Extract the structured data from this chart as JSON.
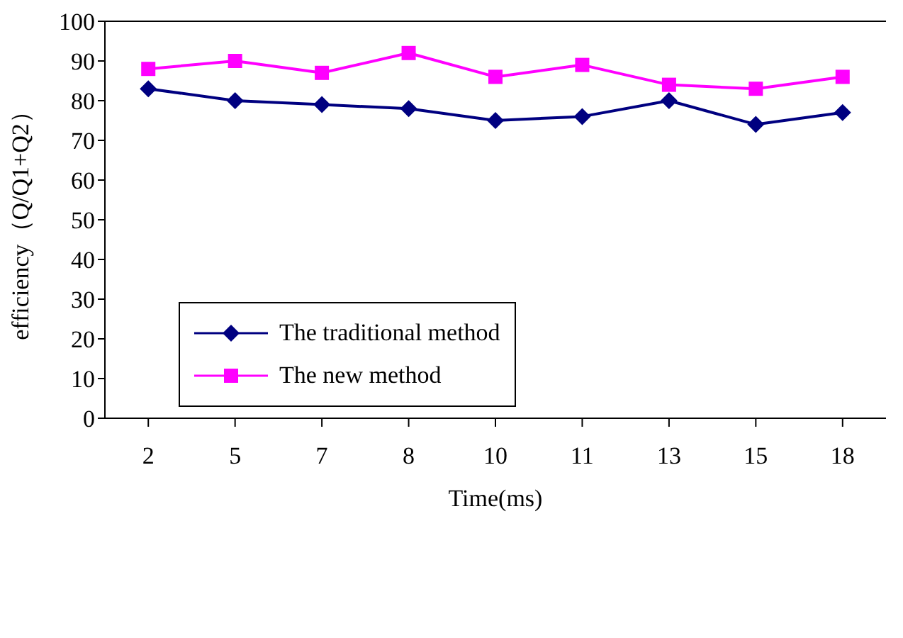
{
  "chart_data": {
    "type": "line",
    "xlabel": "Time(ms)",
    "ylabel": "efficiency（Q/Q1+Q2）",
    "categories": [
      "2",
      "5",
      "7",
      "8",
      "10",
      "11",
      "13",
      "15",
      "18"
    ],
    "series": [
      {
        "name": "The traditional method",
        "color": "#000080",
        "marker": "diamond",
        "values": [
          83,
          80,
          79,
          78,
          75,
          76,
          80,
          74,
          77
        ]
      },
      {
        "name": "The new method",
        "color": "#ff00ff",
        "marker": "square",
        "values": [
          88,
          90,
          87,
          92,
          86,
          89,
          84,
          83,
          86
        ]
      }
    ],
    "ylim": [
      0,
      100
    ],
    "yticks": [
      0,
      10,
      20,
      30,
      40,
      50,
      60,
      70,
      80,
      90,
      100
    ],
    "grid": false,
    "legend": "center left"
  }
}
